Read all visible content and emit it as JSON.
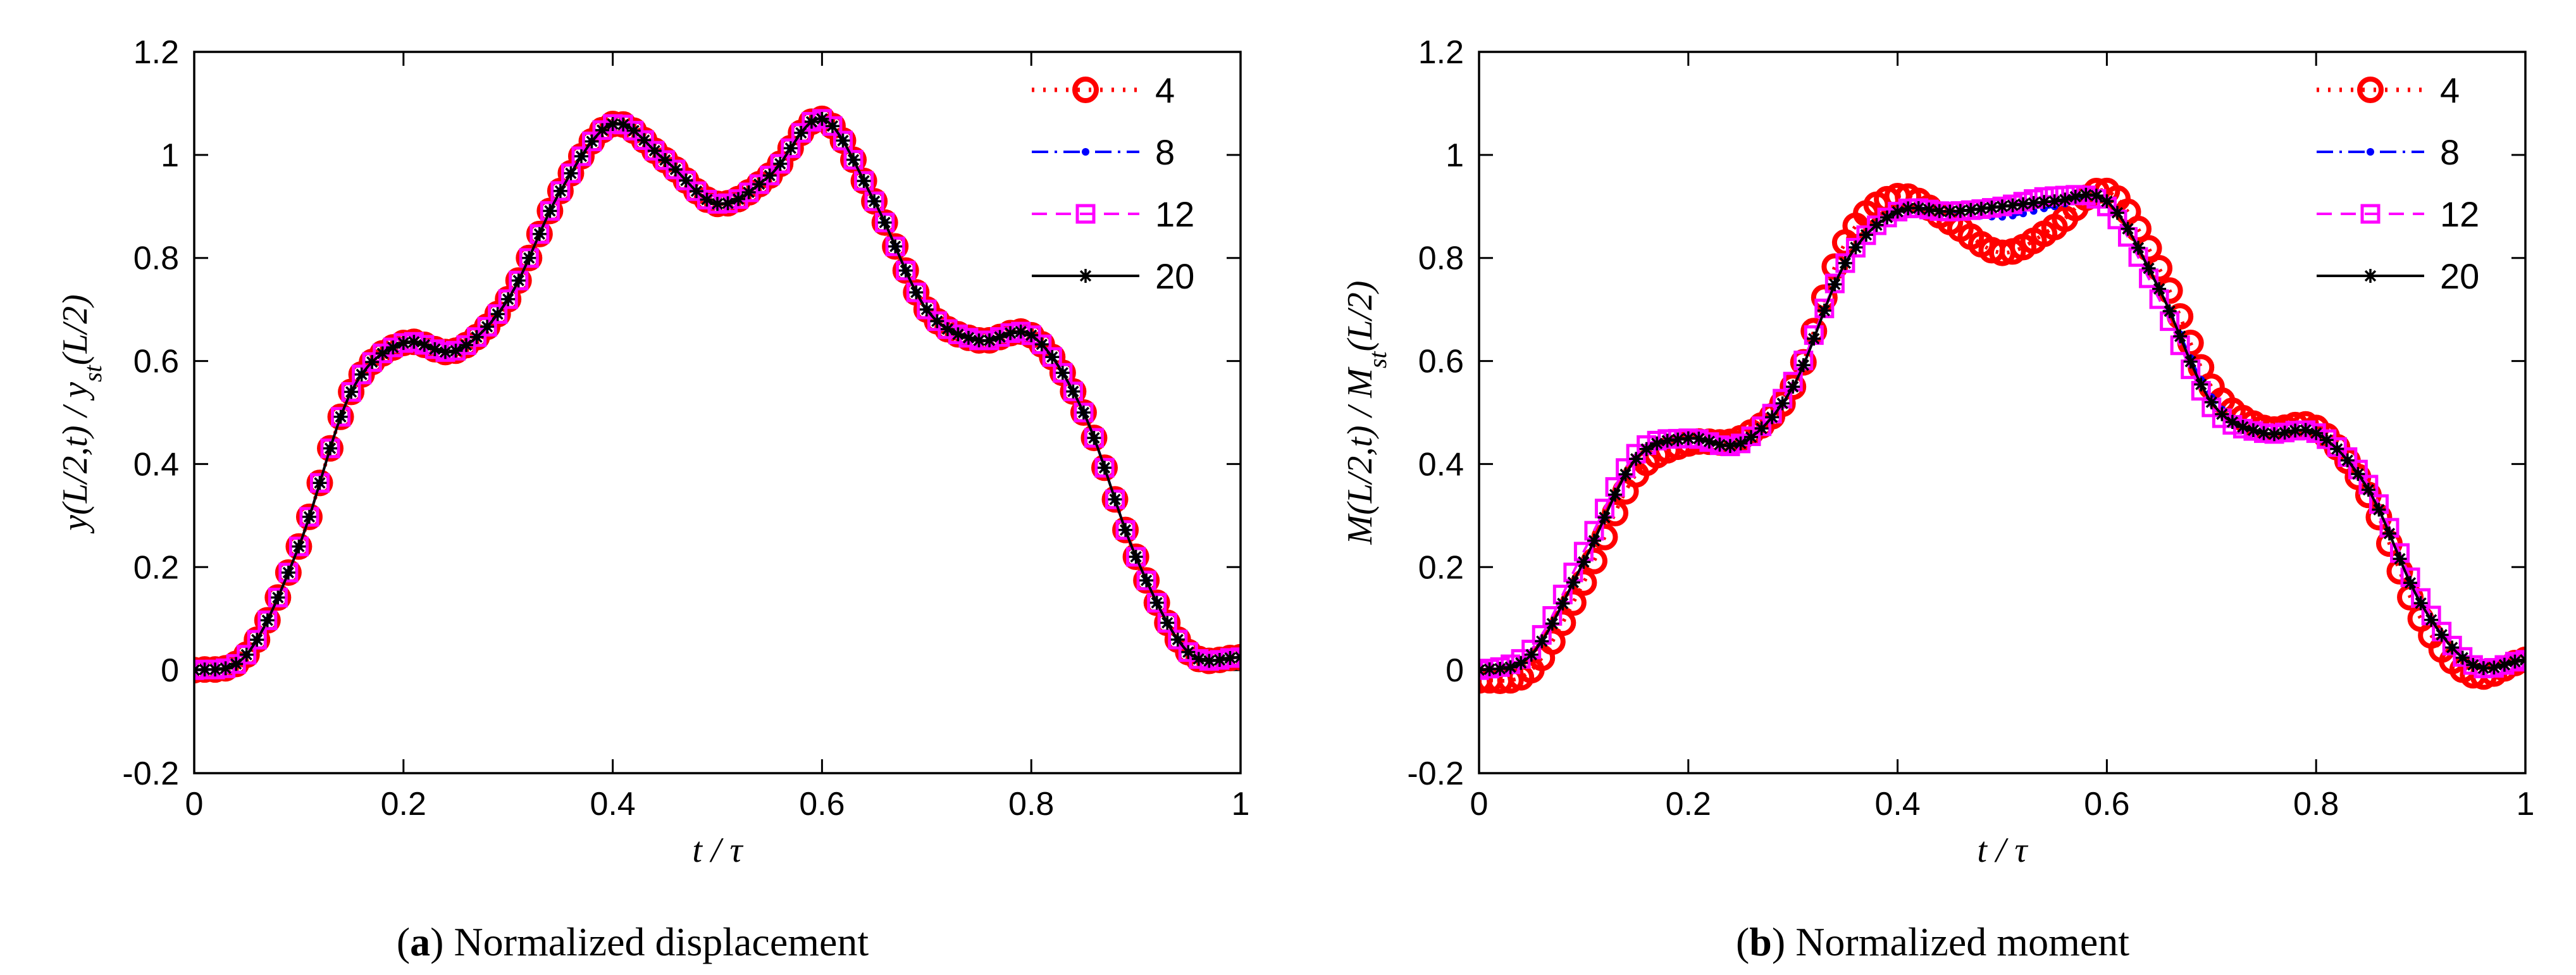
{
  "chart_data": [
    {
      "type": "line",
      "panel": "a",
      "caption_letter": "a",
      "caption_text": "Normalized displacement",
      "xlabel": "t / τ",
      "ylabel": "y(L/2,t) / y_st(L/2)",
      "ylabel_parts": {
        "pre": "y(L/2,",
        "t": "t",
        "mid": ") / y",
        "sub": "st",
        "post": "(L/2)"
      },
      "xlim": [
        0,
        1
      ],
      "ylim": [
        -0.2,
        1.2
      ],
      "xticks": [
        "0",
        "0.2",
        "0.4",
        "0.6",
        "0.8",
        "1"
      ],
      "yticks": [
        "-0.2",
        "0",
        "0.2",
        "0.4",
        "0.6",
        "0.8",
        "1",
        "1.2"
      ],
      "legend_position": "top-right",
      "x": [
        0,
        0.05,
        0.1,
        0.15,
        0.2,
        0.25,
        0.3,
        0.35,
        0.4,
        0.45,
        0.5,
        0.55,
        0.6,
        0.65,
        0.7,
        0.75,
        0.8,
        0.85,
        0.9,
        0.95,
        1.0
      ],
      "series": [
        {
          "name": "4",
          "values": [
            0,
            0.03,
            0.24,
            0.54,
            0.635,
            0.62,
            0.72,
            0.93,
            1.06,
            0.99,
            0.905,
            0.96,
            1.07,
            0.91,
            0.7,
            0.64,
            0.65,
            0.5,
            0.22,
            0.035,
            0.025
          ]
        },
        {
          "name": "8",
          "values": [
            0,
            0.03,
            0.24,
            0.54,
            0.635,
            0.62,
            0.72,
            0.93,
            1.06,
            0.99,
            0.905,
            0.96,
            1.07,
            0.91,
            0.7,
            0.64,
            0.65,
            0.5,
            0.22,
            0.035,
            0.025
          ]
        },
        {
          "name": "12",
          "values": [
            0,
            0.03,
            0.24,
            0.54,
            0.635,
            0.62,
            0.72,
            0.93,
            1.06,
            0.99,
            0.905,
            0.96,
            1.07,
            0.91,
            0.7,
            0.64,
            0.65,
            0.5,
            0.22,
            0.035,
            0.025
          ]
        },
        {
          "name": "20",
          "values": [
            0,
            0.03,
            0.24,
            0.54,
            0.635,
            0.62,
            0.72,
            0.93,
            1.06,
            0.99,
            0.905,
            0.96,
            1.07,
            0.91,
            0.7,
            0.64,
            0.65,
            0.5,
            0.22,
            0.035,
            0.025
          ]
        }
      ]
    },
    {
      "type": "line",
      "panel": "b",
      "caption_letter": "b",
      "caption_text": "Normalized moment",
      "xlabel": "t / τ",
      "ylabel": "M(L/2,t) / M_st(L/2)",
      "ylabel_parts": {
        "pre": "M(L/2,",
        "t": "t",
        "mid": ") / M",
        "sub": "st",
        "post": "(L/2)"
      },
      "xlim": [
        0,
        1
      ],
      "ylim": [
        -0.2,
        1.2
      ],
      "xticks": [
        "0",
        "0.2",
        "0.4",
        "0.6",
        "0.8",
        "1"
      ],
      "yticks": [
        "-0.2",
        "0",
        "0.2",
        "0.4",
        "0.6",
        "0.8",
        "1",
        "1.2"
      ],
      "legend_position": "top-right",
      "x": [
        0,
        0.05,
        0.1,
        0.15,
        0.2,
        0.25,
        0.3,
        0.35,
        0.4,
        0.45,
        0.5,
        0.55,
        0.6,
        0.65,
        0.7,
        0.75,
        0.8,
        0.85,
        0.9,
        0.95,
        1.0
      ],
      "series": [
        {
          "name": "4",
          "values": [
            -0.02,
            0.0,
            0.17,
            0.38,
            0.44,
            0.45,
            0.55,
            0.83,
            0.92,
            0.87,
            0.81,
            0.86,
            0.93,
            0.78,
            0.55,
            0.47,
            0.47,
            0.34,
            0.1,
            -0.01,
            0.02
          ]
        },
        {
          "name": "8",
          "values": [
            0,
            0.03,
            0.21,
            0.41,
            0.45,
            0.44,
            0.55,
            0.79,
            0.89,
            0.89,
            0.88,
            0.9,
            0.91,
            0.74,
            0.53,
            0.46,
            0.46,
            0.35,
            0.13,
            0.01,
            0.02
          ]
        },
        {
          "name": "12",
          "values": [
            0,
            0.04,
            0.23,
            0.42,
            0.45,
            0.44,
            0.56,
            0.79,
            0.89,
            0.89,
            0.9,
            0.92,
            0.9,
            0.72,
            0.51,
            0.46,
            0.46,
            0.36,
            0.14,
            0.01,
            0.02
          ]
        },
        {
          "name": "20",
          "values": [
            0,
            0.03,
            0.21,
            0.41,
            0.45,
            0.44,
            0.55,
            0.79,
            0.89,
            0.89,
            0.9,
            0.91,
            0.91,
            0.74,
            0.52,
            0.46,
            0.46,
            0.35,
            0.13,
            0.01,
            0.02
          ]
        }
      ]
    }
  ],
  "series_style": [
    {
      "name": "4",
      "color": "#ff0000",
      "marker": "circle",
      "line": "dotted"
    },
    {
      "name": "8",
      "color": "#0000ff",
      "marker": "dot",
      "line": "dashdot"
    },
    {
      "name": "12",
      "color": "#ff00ff",
      "marker": "square",
      "line": "dashed"
    },
    {
      "name": "20",
      "color": "#000000",
      "marker": "star",
      "line": "solid"
    }
  ]
}
